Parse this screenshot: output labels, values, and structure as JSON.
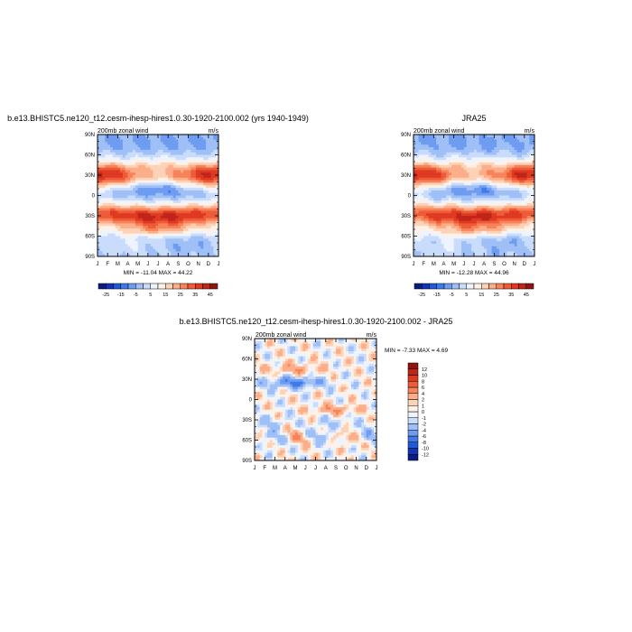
{
  "chart_data": [
    {
      "type": "heatmap",
      "title": "b.e13.BHISTC5.ne120_t12.cesm-ihesp-hires1.0.30-1920-2100.002 (yrs 1940-1949)",
      "left_label": "200mb zonal wind",
      "right_label": "m/s",
      "x_ticks": [
        "J",
        "F",
        "M",
        "A",
        "M",
        "J",
        "J",
        "A",
        "S",
        "O",
        "N",
        "D",
        "J"
      ],
      "y_ticks": [
        "90N",
        "60N",
        "30N",
        "0",
        "30S",
        "60S",
        "90S"
      ],
      "stats": "MIN = -11.04 MAX =  44.22",
      "colorbar": {
        "levels": [
          -30,
          -25,
          -20,
          -15,
          -10,
          -5,
          0,
          5,
          10,
          15,
          20,
          25,
          30,
          35,
          40,
          45,
          50
        ],
        "labels": [
          "-25",
          "-15",
          "-5",
          "5",
          "15",
          "25",
          "35",
          "45"
        ],
        "colors": [
          "#0a1d7e",
          "#1233b8",
          "#2158d6",
          "#3f7ae8",
          "#6e9cf1",
          "#9fbff7",
          "#cadcfb",
          "#eef4fe",
          "#fff1e6",
          "#fdd3b8",
          "#fbae89",
          "#f7835b",
          "#ef5b38",
          "#de3a22",
          "#c0251a",
          "#8e1512"
        ],
        "orientation": "horizontal"
      }
    },
    {
      "type": "heatmap",
      "title": "JRA25",
      "left_label": "200mb zonal wind",
      "right_label": "m/s",
      "x_ticks": [
        "J",
        "F",
        "M",
        "A",
        "M",
        "J",
        "J",
        "A",
        "S",
        "O",
        "N",
        "D",
        "J"
      ],
      "y_ticks": [
        "90N",
        "60N",
        "30N",
        "0",
        "30S",
        "60S",
        "90S"
      ],
      "stats": "MIN = -12.28 MAX =  44.96",
      "colorbar": {
        "levels": [
          -30,
          -25,
          -20,
          -15,
          -10,
          -5,
          0,
          5,
          10,
          15,
          20,
          25,
          30,
          35,
          40,
          45,
          50
        ],
        "labels": [
          "-25",
          "-15",
          "-5",
          "5",
          "15",
          "25",
          "35",
          "45"
        ],
        "colors": [
          "#0a1d7e",
          "#1233b8",
          "#2158d6",
          "#3f7ae8",
          "#6e9cf1",
          "#9fbff7",
          "#cadcfb",
          "#eef4fe",
          "#fff1e6",
          "#fdd3b8",
          "#fbae89",
          "#f7835b",
          "#ef5b38",
          "#de3a22",
          "#c0251a",
          "#8e1512"
        ],
        "orientation": "horizontal"
      }
    },
    {
      "type": "heatmap",
      "title": "b.e13.BHISTC5.ne120_t12.cesm-ihesp-hires1.0.30-1920-2100.002 - JRA25",
      "left_label": "200mb zonal wind",
      "right_label": "m/s",
      "x_ticks": [
        "J",
        "F",
        "M",
        "A",
        "M",
        "J",
        "J",
        "A",
        "S",
        "O",
        "N",
        "D",
        "J"
      ],
      "y_ticks": [
        "90N",
        "60N",
        "30N",
        "0",
        "30S",
        "60S",
        "90S"
      ],
      "stats": "MIN =  -7.33 MAX =   4.69",
      "colorbar": {
        "levels": [
          -14,
          -12,
          -10,
          -8,
          -6,
          -4,
          -2,
          -1,
          0,
          1,
          2,
          4,
          6,
          8,
          10,
          12,
          14
        ],
        "labels": [
          "-12",
          "-10",
          "-8",
          "-6",
          "-4",
          "-2",
          "-1",
          "0",
          "1",
          "2",
          "4",
          "6",
          "8",
          "10",
          "12"
        ],
        "colors": [
          "#0a1d7e",
          "#1233b8",
          "#2158d6",
          "#3f7ae8",
          "#6e9cf1",
          "#9fbff7",
          "#cadcfb",
          "#eef4fe",
          "#fff1e6",
          "#fdd3b8",
          "#fbae89",
          "#f7835b",
          "#ef5b38",
          "#de3a22",
          "#c0251a",
          "#8e1512"
        ],
        "orientation": "vertical"
      }
    }
  ]
}
